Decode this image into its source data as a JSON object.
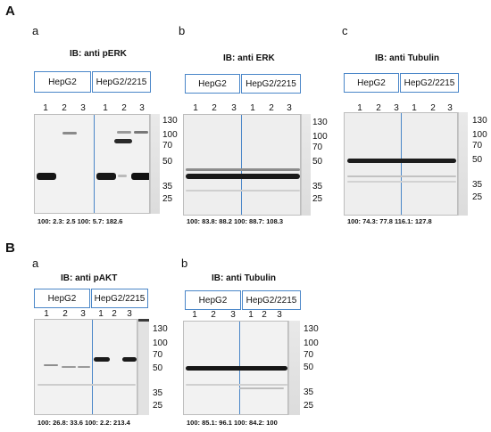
{
  "sections": [
    {
      "label": "A",
      "panels": [
        {
          "label": "a",
          "title": "IB: anti pERK",
          "cell_lines": [
            "HepG2",
            "HepG2/2215"
          ],
          "lanes": [
            "1",
            "2",
            "3",
            "1",
            "2",
            "3"
          ],
          "markers": [
            "130",
            "100",
            "70",
            "50",
            "35",
            "25"
          ],
          "quant": "100:  2.3: 2.5   100:  5.7:  182.6"
        },
        {
          "label": "b",
          "title": "IB: anti ERK",
          "cell_lines": [
            "HepG2",
            "HepG2/2215"
          ],
          "lanes": [
            "1",
            "2",
            "3",
            "1",
            "2",
            "3"
          ],
          "markers": [
            "130",
            "100",
            "70",
            "50",
            "35",
            "25"
          ],
          "quant": "100:  83.8: 88.2   100:  88.7: 108.3"
        },
        {
          "label": "c",
          "title": "IB: anti Tubulin",
          "cell_lines": [
            "HepG2",
            "HepG2/2215"
          ],
          "lanes": [
            "1",
            "2",
            "3",
            "1",
            "2",
            "3"
          ],
          "markers": [
            "130",
            "100",
            "70",
            "50",
            "35",
            "25"
          ],
          "quant": "100:   74.3: 77.8    116.1: 127.8"
        }
      ]
    },
    {
      "label": "B",
      "panels": [
        {
          "label": "a",
          "title": "IB: anti pAKT",
          "cell_lines": [
            "HepG2",
            "HepG2/2215"
          ],
          "lanes": [
            "1",
            "2",
            "3",
            "1",
            "2",
            "3"
          ],
          "markers": [
            "130",
            "100",
            "70",
            "50",
            "35",
            "25"
          ],
          "quant": "100:  26.8: 33.6 100: 2.2: 213.4"
        },
        {
          "label": "b",
          "title": "IB: anti Tubulin",
          "cell_lines": [
            "HepG2",
            "HepG2/2215"
          ],
          "lanes": [
            "1",
            "2",
            "3",
            "1",
            "2",
            "3"
          ],
          "markers": [
            "130",
            "100",
            "70",
            "50",
            "35",
            "25"
          ],
          "quant": "100:  85.1: 96.1 100: 84.2: 100"
        }
      ]
    }
  ]
}
